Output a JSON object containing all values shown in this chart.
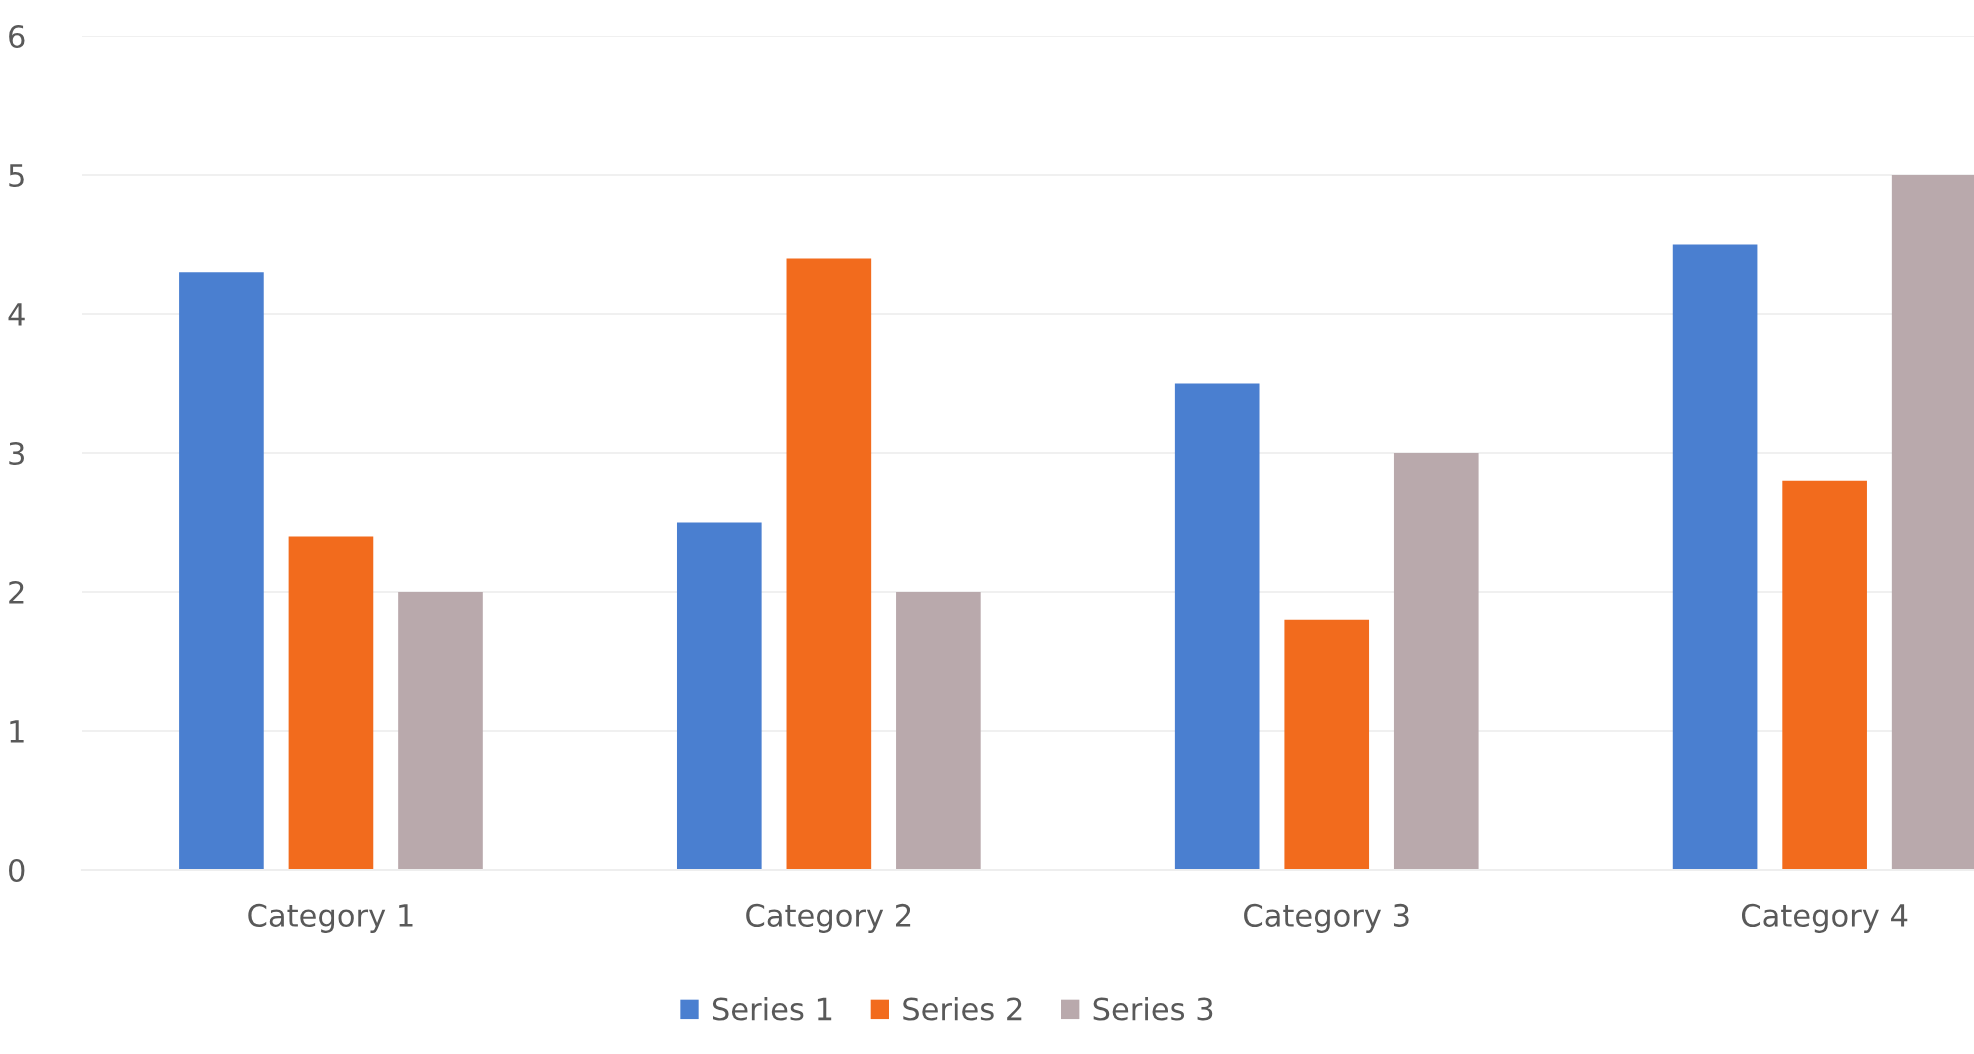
{
  "chart_data": {
    "type": "bar",
    "categories": [
      "Category 1",
      "Category 2",
      "Category 3",
      "Category 4"
    ],
    "series": [
      {
        "name": "Series 1",
        "color": "#4a7fd0",
        "values": [
          4.3,
          2.5,
          3.5,
          4.5
        ]
      },
      {
        "name": "Series 2",
        "color": "#f26b1d",
        "values": [
          2.4,
          4.4,
          1.8,
          2.8
        ]
      },
      {
        "name": "Series 3",
        "color": "#b9a9ac",
        "values": [
          2,
          2,
          3,
          5
        ]
      }
    ],
    "ylim": [
      0,
      6
    ],
    "yticks": [
      0,
      1,
      2,
      3,
      4,
      5,
      6
    ],
    "grid": "y",
    "legend": "bottom"
  }
}
